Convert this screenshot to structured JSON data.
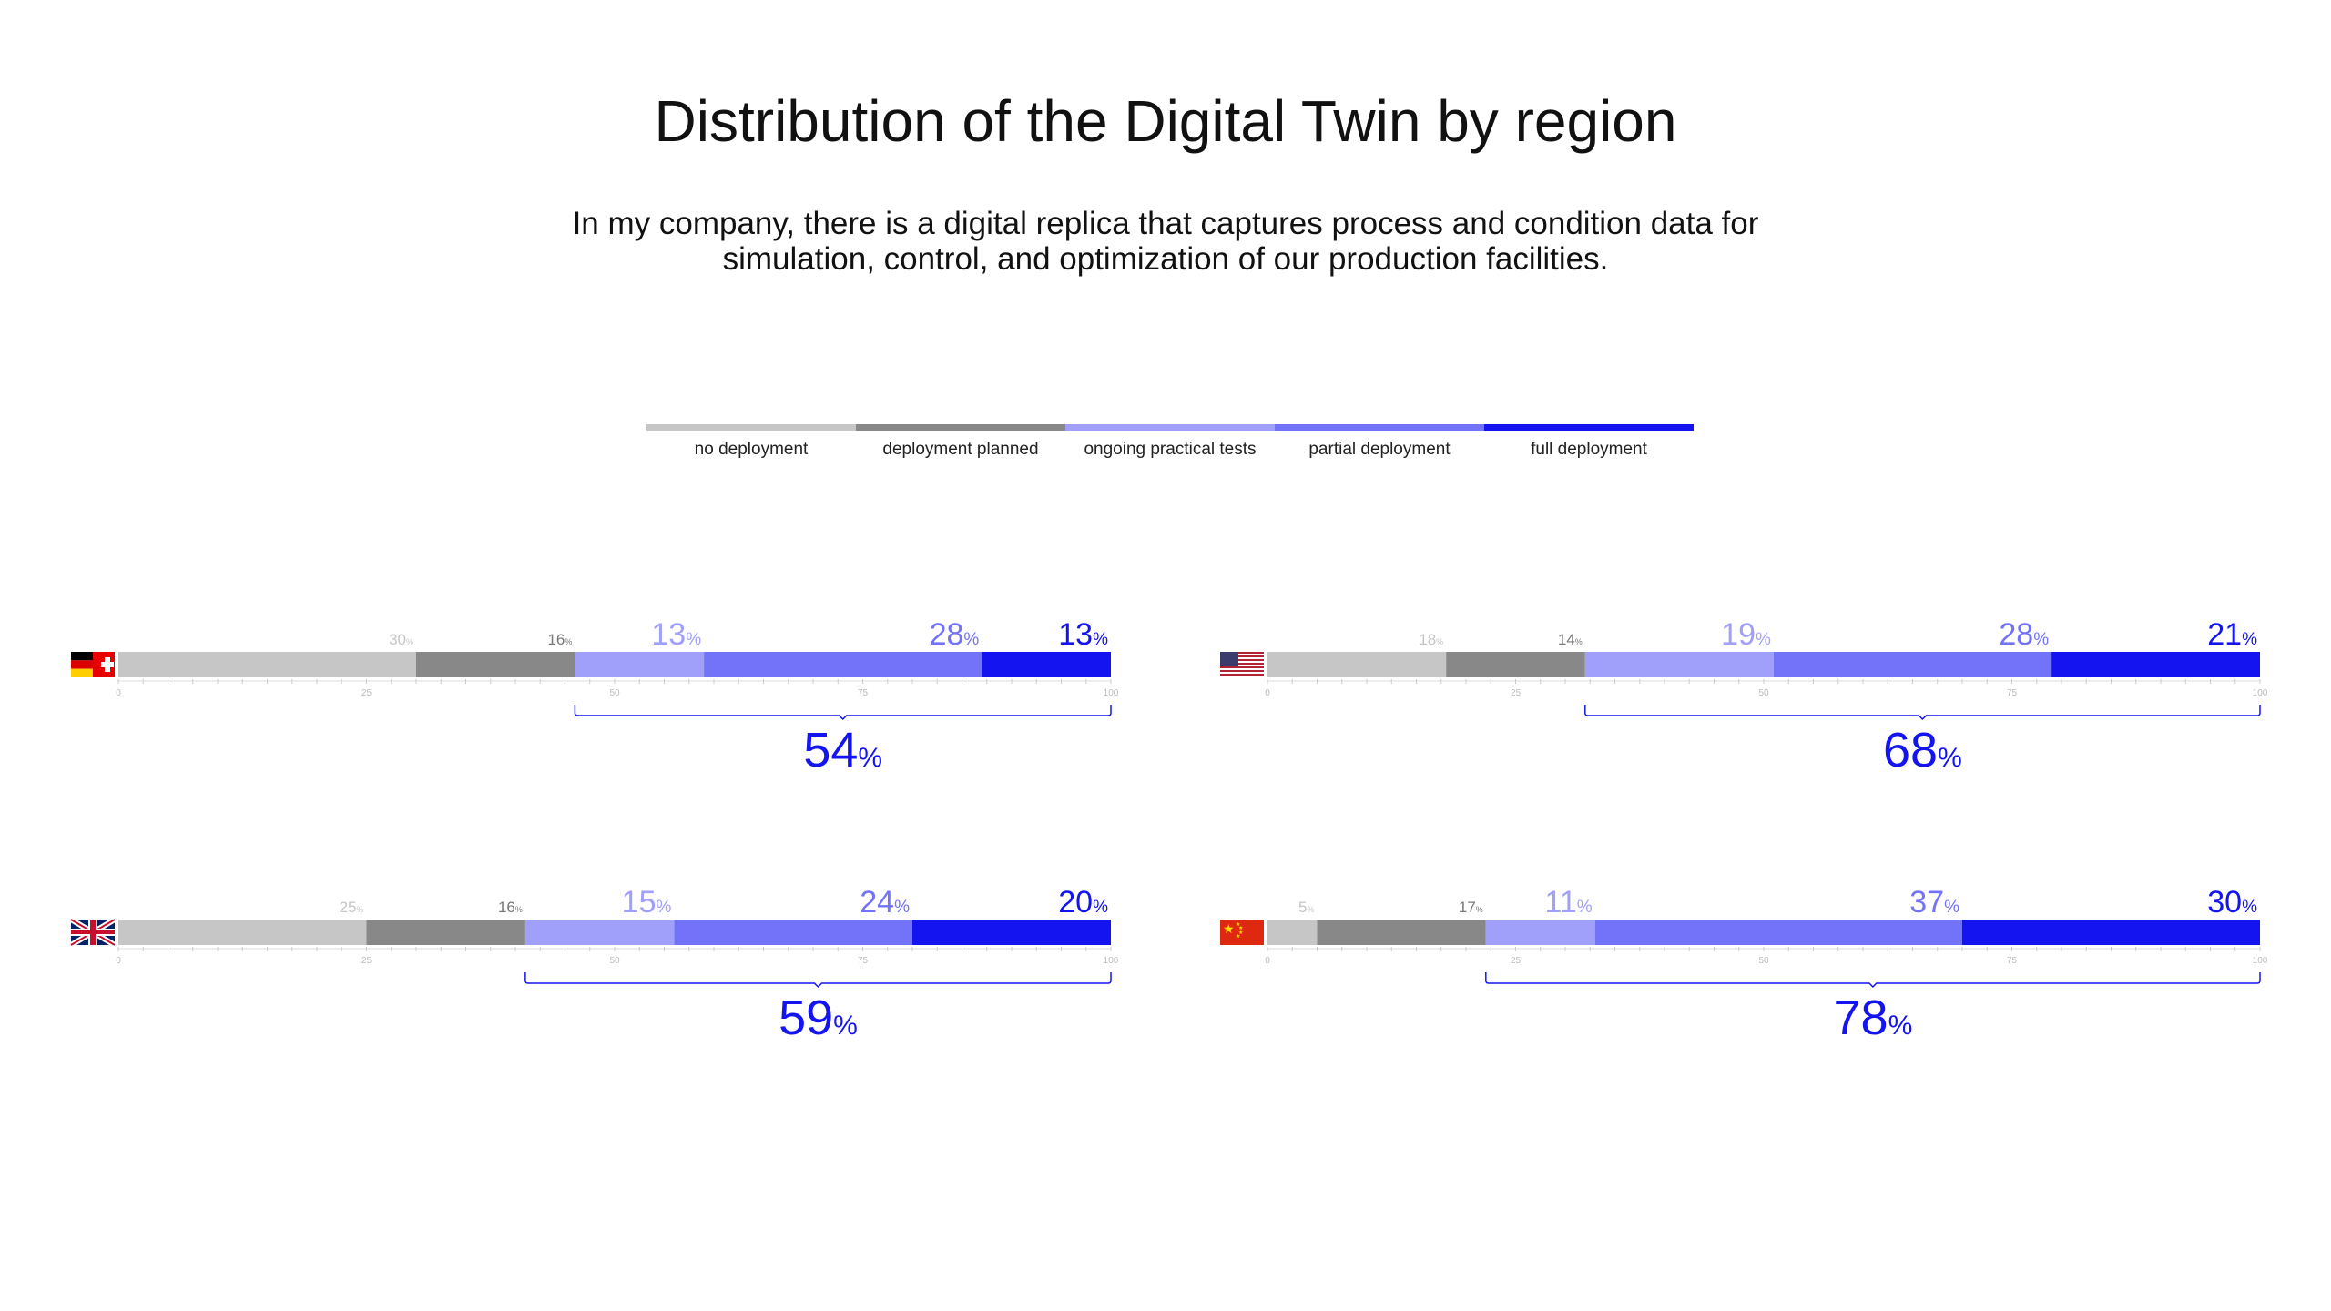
{
  "title": "Distribution of the Digital Twin by region",
  "subtitle": "In my company, there is a digital replica that captures process and condition data for simulation, control, and optimization of our production facilities.",
  "colors": {
    "no_deployment": "#c6c6c6",
    "deployment_planned": "#888888",
    "ongoing_practical_tests": "#a0a0fa",
    "partial_deployment": "#7373fa",
    "full_deployment": "#1414f0"
  },
  "legend": [
    {
      "label": "no deployment",
      "color": "#c6c6c6"
    },
    {
      "label": "deployment planned",
      "color": "#888888"
    },
    {
      "label": "ongoing practical tests",
      "color": "#a0a0fa"
    },
    {
      "label": "partial deployment",
      "color": "#7373fa"
    },
    {
      "label": "full deployment",
      "color": "#1414f0"
    }
  ],
  "percent_sign": "%",
  "chart_data": {
    "type": "bar",
    "stacked": true,
    "orientation": "horizontal",
    "title": "Distribution of the Digital Twin by region",
    "xlim": [
      0,
      100
    ],
    "ticks": [
      0,
      25,
      50,
      75,
      100
    ],
    "series_names": [
      "no deployment",
      "deployment planned",
      "ongoing practical tests",
      "partial deployment",
      "full deployment"
    ],
    "regions": [
      {
        "flag": "germany-switzerland-flag-icon",
        "values": [
          30,
          16,
          13,
          28,
          13
        ],
        "total": 54
      },
      {
        "flag": "usa-flag-icon",
        "values": [
          18,
          14,
          19,
          28,
          21
        ],
        "total": 68
      },
      {
        "flag": "uk-flag-icon",
        "values": [
          25,
          16,
          15,
          24,
          20
        ],
        "total": 59
      },
      {
        "flag": "china-flag-icon",
        "values": [
          5,
          17,
          11,
          37,
          30
        ],
        "total": 78
      }
    ]
  }
}
